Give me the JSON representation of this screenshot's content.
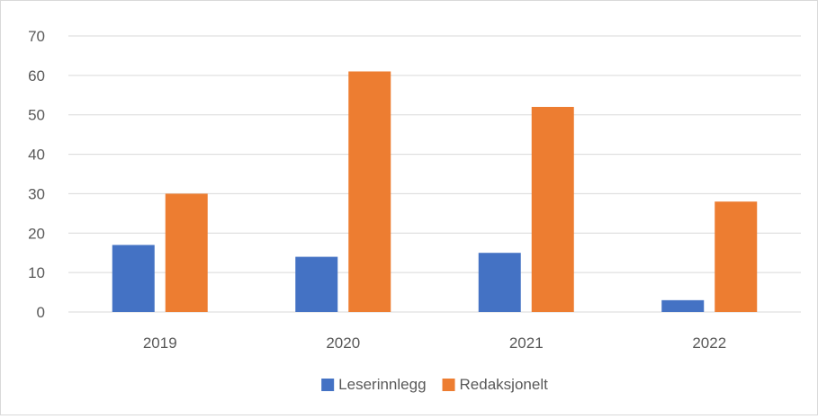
{
  "chart_data": {
    "type": "bar",
    "title": "",
    "xlabel": "",
    "ylabel": "",
    "categories": [
      "2019",
      "2020",
      "2021",
      "2022"
    ],
    "series": [
      {
        "name": "Leserinnlegg",
        "color": "#4472c4",
        "values": [
          17,
          14,
          15,
          3
        ]
      },
      {
        "name": "Redaksjonelt",
        "color": "#ed7d31",
        "values": [
          30,
          61,
          52,
          28
        ]
      }
    ],
    "ylim": [
      0,
      70
    ],
    "yticks": [
      "0",
      "10",
      "20",
      "30",
      "40",
      "50",
      "60",
      "70"
    ],
    "grid": true,
    "legend": "bottom"
  }
}
